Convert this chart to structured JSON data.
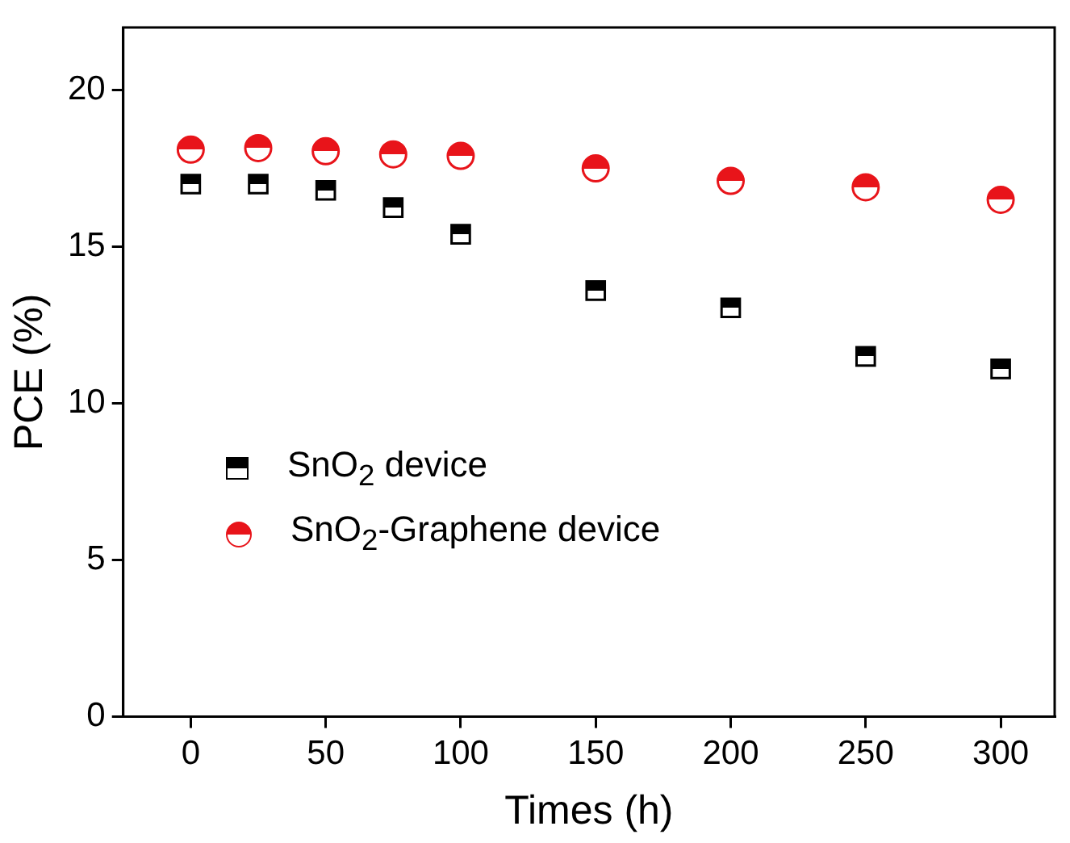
{
  "chart_data": {
    "type": "scatter",
    "xlabel": "Times (h)",
    "ylabel": "PCE (%)",
    "x": [
      0,
      25,
      50,
      75,
      100,
      150,
      200,
      250,
      300
    ],
    "series": [
      {
        "name": "SnO$_{2}$ device",
        "color": "#000000",
        "marker": "square",
        "values": [
          17.0,
          17.0,
          16.8,
          16.25,
          15.4,
          13.6,
          13.05,
          11.5,
          11.1
        ]
      },
      {
        "name": "SnO$_{2}$-Graphene device",
        "color": "#e8141a",
        "marker": "circle",
        "values": [
          18.1,
          18.15,
          18.05,
          17.95,
          17.9,
          17.5,
          17.1,
          16.9,
          16.5
        ]
      }
    ],
    "xlim": [
      -25,
      320
    ],
    "xticks": [
      0,
      50,
      100,
      150,
      200,
      250,
      300
    ],
    "ylim": [
      0,
      22
    ],
    "yticks": [
      0,
      5,
      10,
      15,
      20
    ],
    "grid": false,
    "legend": "center left"
  }
}
